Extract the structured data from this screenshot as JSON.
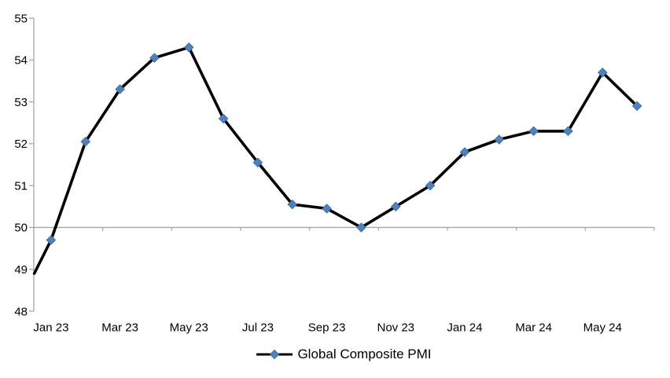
{
  "chart_data": {
    "type": "line",
    "title": "",
    "legend": {
      "label": "Global Composite PMI",
      "position": "bottom-center",
      "marker": "diamond"
    },
    "series": [
      {
        "name": "Global Composite PMI",
        "categories": [
          "Jan 23",
          "Feb 23",
          "Mar 23",
          "Apr 23",
          "May 23",
          "Jun 23",
          "Jul 23",
          "Aug 23",
          "Sep 23",
          "Oct 23",
          "Nov 23",
          "Dec 23",
          "Jan 24",
          "Feb 24",
          "Mar 24",
          "Apr 24",
          "May 24",
          "Jun 24"
        ],
        "values": [
          49.7,
          52.05,
          53.3,
          54.05,
          54.3,
          52.6,
          51.55,
          50.55,
          50.45,
          50.0,
          50.5,
          51.0,
          51.8,
          52.1,
          52.3,
          52.3,
          53.7,
          52.9
        ],
        "marker": "diamond"
      }
    ],
    "left_edge_line_start_value": 48.9,
    "x_tick_labels": [
      "Jan 23",
      "Mar 23",
      "May 23",
      "Jul 23",
      "Sep 23",
      "Nov 23",
      "Jan 24",
      "Mar 24",
      "May 24"
    ],
    "y_tick_labels": [
      "55",
      "54",
      "53",
      "52",
      "51",
      "50",
      "49",
      "48"
    ],
    "y_axis": {
      "min": 48,
      "max": 55,
      "step": 1
    },
    "x_axis_crosses_at": 50,
    "grid": "off",
    "colors": {
      "marker": "#4f81bd",
      "marker_edge": "#3f6fa3",
      "line": "#000000",
      "axis": "#a6a6a6",
      "text": "#000000",
      "background": "#ffffff"
    }
  }
}
